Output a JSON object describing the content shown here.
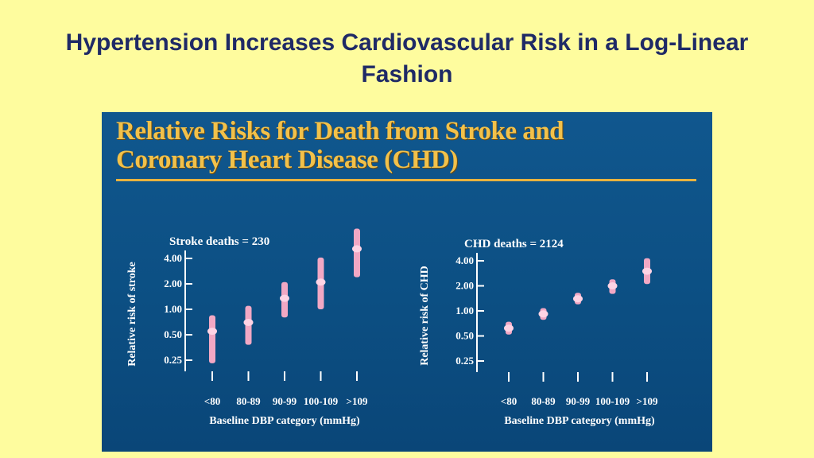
{
  "slide": {
    "title": "Hypertension Increases Cardiovascular Risk in a Log-Linear Fashion"
  },
  "panel": {
    "title_line1": "Relative Risks for Death from Stroke and",
    "title_line2": "Coronary Heart Disease (CHD)"
  },
  "colors": {
    "slide_background": "#fefc9e",
    "slide_title": "#1f2a66",
    "panel_background": "#0c4f83",
    "panel_title": "#f2c14a",
    "marker": "#f2a8c4",
    "marker_point": "#ffd3e4"
  },
  "chart_data": [
    {
      "type": "scatter",
      "subtitle": "Stroke deaths = 230",
      "xlabel": "Baseline DBP category (mmHg)",
      "ylabel": "Relative risk of stroke",
      "yscale": "log",
      "ylim": [
        0.25,
        4.0
      ],
      "yticks": [
        4.0,
        2.0,
        1.0,
        0.5,
        0.25
      ],
      "ytick_labels": [
        "4.00",
        "2.00",
        "1.00",
        "0.50",
        "0.25"
      ],
      "categories": [
        "<80",
        "80-89",
        "90-99",
        "100-109",
        ">109"
      ],
      "values": [
        0.55,
        0.7,
        1.35,
        2.1,
        5.2
      ],
      "ci_low": [
        0.23,
        0.38,
        0.8,
        1.0,
        2.4
      ],
      "ci_high": [
        0.85,
        1.1,
        2.1,
        4.1,
        9.0
      ]
    },
    {
      "type": "scatter",
      "subtitle": "CHD deaths = 2124",
      "xlabel": "Baseline DBP category (mmHg)",
      "ylabel": "Relative risk of CHD",
      "yscale": "log",
      "ylim": [
        0.25,
        4.0
      ],
      "yticks": [
        4.0,
        2.0,
        1.0,
        0.5,
        0.25
      ],
      "ytick_labels": [
        "4.00",
        "2.00",
        "1.00",
        "0.50",
        "0.25"
      ],
      "categories": [
        "<80",
        "80-89",
        "90-99",
        "100-109",
        ">109"
      ],
      "values": [
        0.62,
        0.92,
        1.4,
        2.0,
        3.0
      ],
      "ci_low": [
        0.52,
        0.78,
        1.2,
        1.6,
        2.1
      ],
      "ci_high": [
        0.74,
        1.08,
        1.65,
        2.4,
        4.3
      ]
    }
  ]
}
